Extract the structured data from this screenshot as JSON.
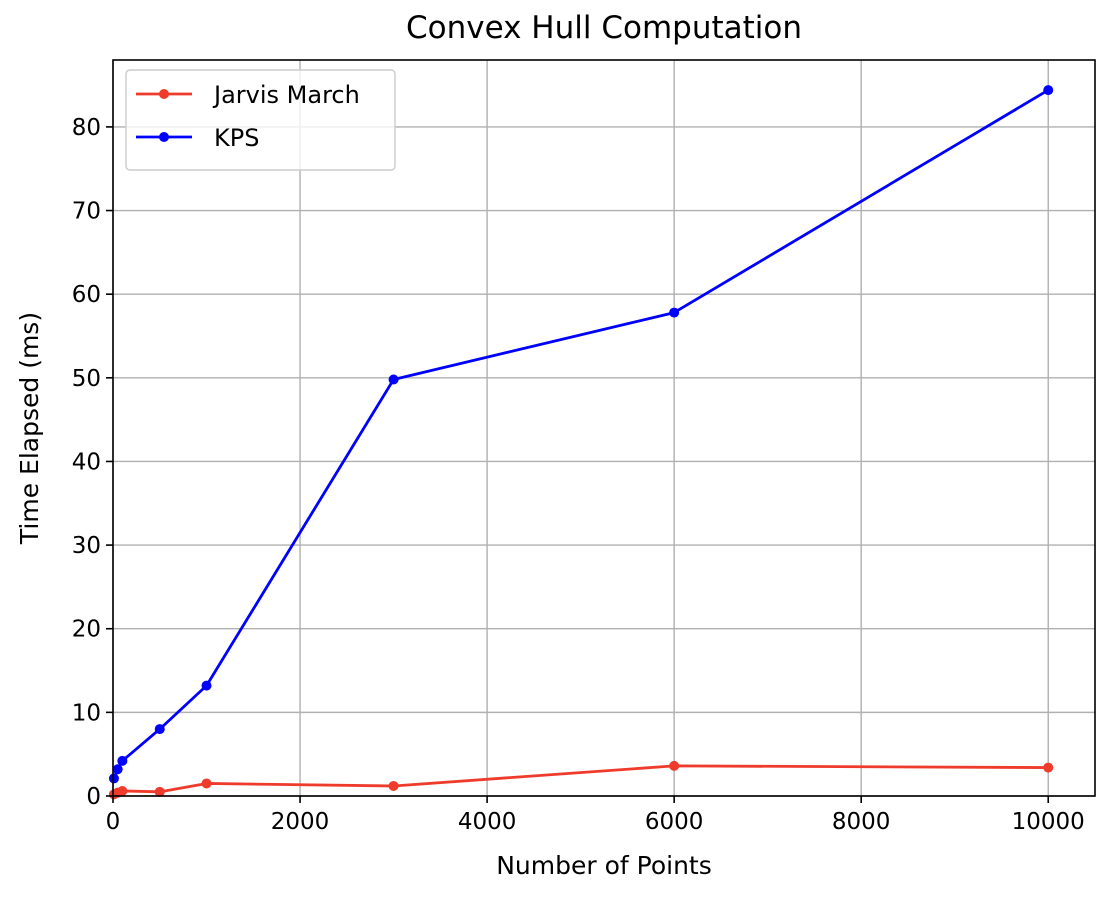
{
  "chart_data": {
    "type": "line",
    "title": "Convex Hull Computation",
    "xlabel": "Number of Points",
    "ylabel": "Time Elapsed (ms)",
    "xlim": [
      0,
      10500
    ],
    "ylim": [
      0,
      88
    ],
    "xticks": [
      0,
      2000,
      4000,
      6000,
      8000,
      10000
    ],
    "yticks": [
      0,
      10,
      20,
      30,
      40,
      50,
      60,
      70,
      80
    ],
    "grid": true,
    "legend_placement": "upper-left",
    "series": [
      {
        "name": "Jarvis March",
        "color": "#ef3b2c",
        "marker": "circle",
        "x": [
          10,
          50,
          100,
          500,
          1000,
          3000,
          6000,
          10000
        ],
        "y": [
          0.2,
          0.4,
          0.6,
          0.5,
          1.5,
          1.2,
          3.6,
          3.4
        ]
      },
      {
        "name": "KPS",
        "color": "#0000ff",
        "marker": "circle",
        "x": [
          10,
          50,
          100,
          500,
          1000,
          3000,
          6000,
          10000
        ],
        "y": [
          2.1,
          3.2,
          4.2,
          8.0,
          13.2,
          49.8,
          57.8,
          84.4
        ]
      }
    ]
  }
}
